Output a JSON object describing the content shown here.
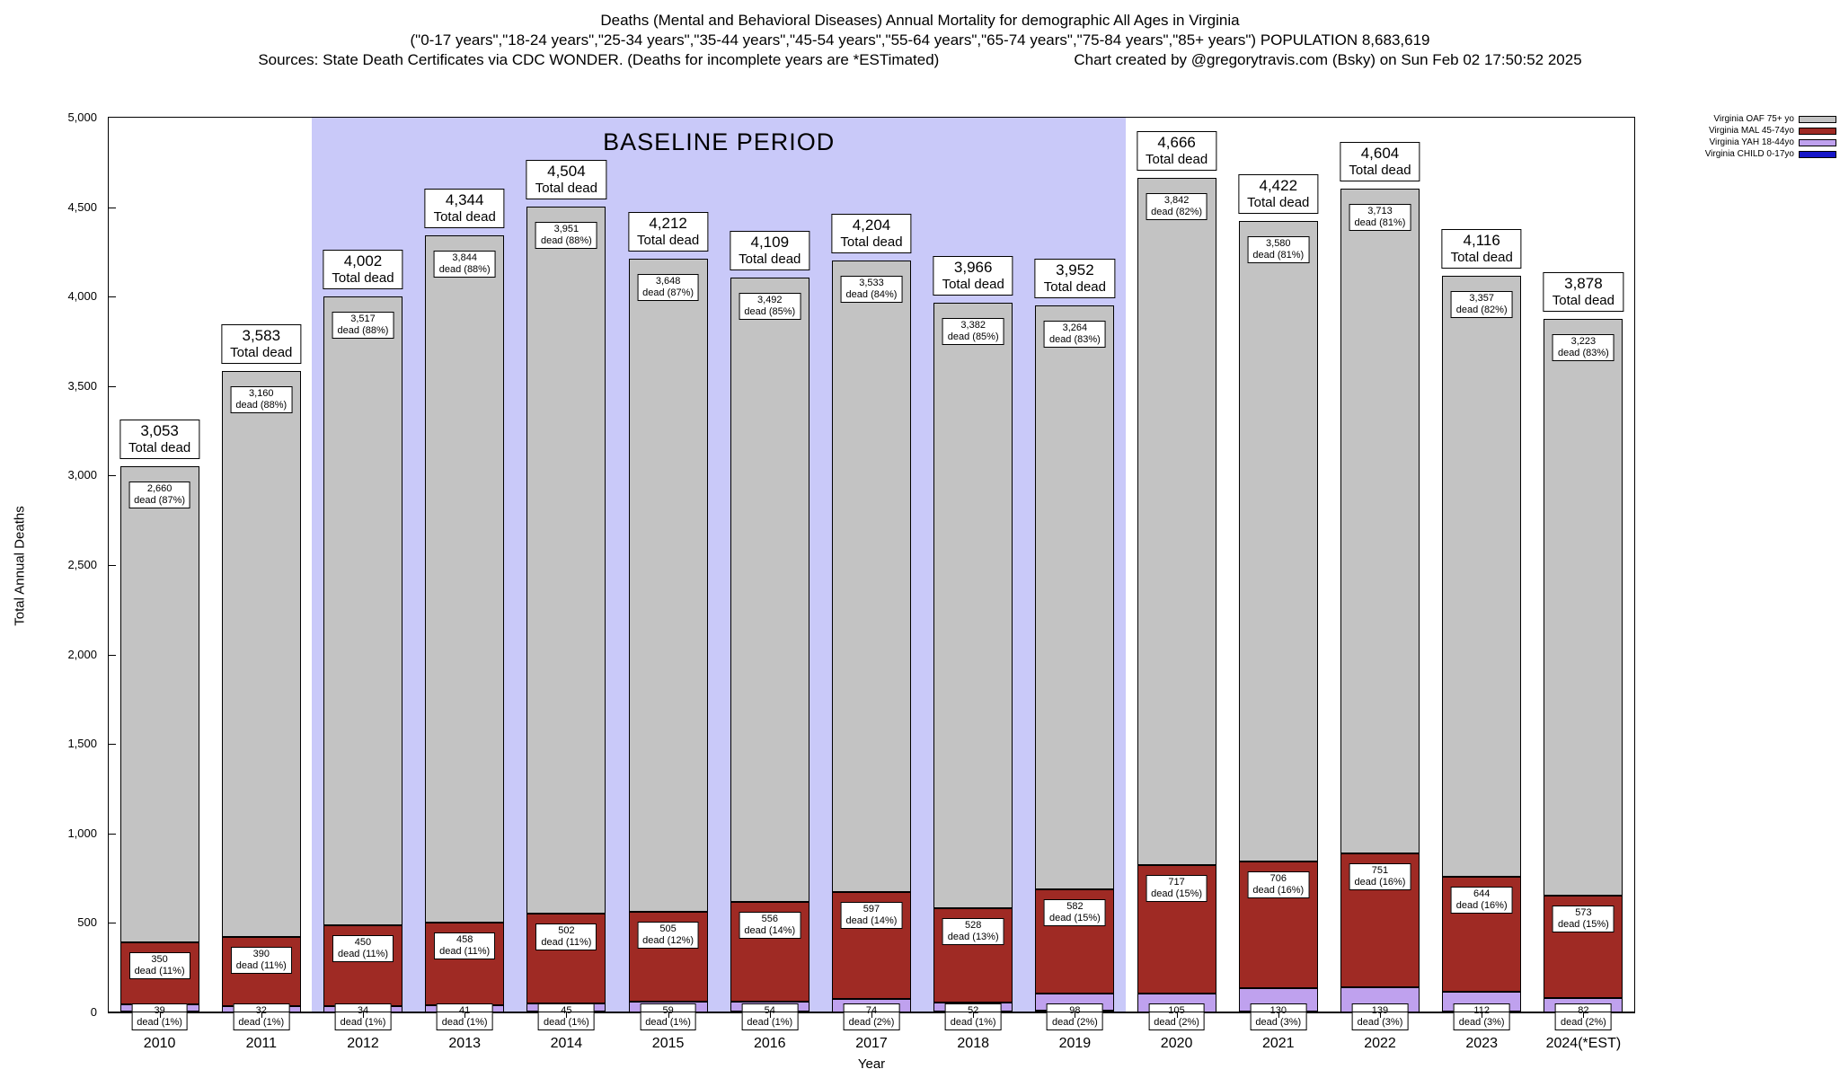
{
  "header": {
    "line1": "Deaths (Mental and Behavioral Diseases) Annual Mortality for demographic All Ages in Virginia",
    "line2": "(\"0-17 years\",\"18-24 years\",\"25-34 years\",\"35-44 years\",\"45-54 years\",\"55-64 years\",\"65-74 years\",\"75-84 years\",\"85+ years\") POPULATION 8,683,619",
    "sources": "Sources: State Death Certificates via CDC WONDER. (Deaths for incomplete years are *ESTimated)",
    "credit": "Chart created by @gregorytravis.com (Bsky) on Sun Feb 02 17:50:52 2025"
  },
  "chart_data": {
    "type": "bar",
    "stacked": true,
    "xlabel": "Year",
    "ylabel": "Total Annual Deaths",
    "ylim": [
      0,
      5000
    ],
    "yticks": [
      0,
      500,
      1000,
      1500,
      2000,
      2500,
      3000,
      3500,
      4000,
      4500,
      5000
    ],
    "total_dead_text": "Total dead",
    "baseline_period": {
      "label": "BASELINE PERIOD",
      "from": "2012",
      "to": "2019"
    },
    "colors": {
      "oaf": "#c3c3c3",
      "mal": "#9f2a24",
      "yah": "#bfa1ee",
      "child": "#1616c8",
      "baseline": "#c9c9f9"
    },
    "legend": [
      {
        "label": "Virginia OAF 75+ yo",
        "key": "oaf"
      },
      {
        "label": "Virginia MAL 45-74yo",
        "key": "mal"
      },
      {
        "label": "Virginia YAH 18-44yo",
        "key": "yah"
      },
      {
        "label": "Virginia CHILD 0-17yo",
        "key": "child"
      }
    ],
    "categories": [
      "2010",
      "2011",
      "2012",
      "2013",
      "2014",
      "2015",
      "2016",
      "2017",
      "2018",
      "2019",
      "2020",
      "2021",
      "2022",
      "2023",
      "2024(*EST)"
    ],
    "bars": [
      {
        "year": "2010",
        "total": 3053,
        "total_label": "3,053",
        "oaf": {
          "v": 2660,
          "label": "2,660",
          "sub": "dead (87%)"
        },
        "mal": {
          "v": 350,
          "label": "350",
          "sub": "dead (11%)"
        },
        "yah": {
          "v": 39,
          "label": "39",
          "sub": "dead (1%)"
        }
      },
      {
        "year": "2011",
        "total": 3583,
        "total_label": "3,583",
        "oaf": {
          "v": 3160,
          "label": "3,160",
          "sub": "dead (88%)"
        },
        "mal": {
          "v": 390,
          "label": "390",
          "sub": "dead (11%)"
        },
        "yah": {
          "v": 32,
          "label": "32",
          "sub": "dead (1%)"
        }
      },
      {
        "year": "2012",
        "total": 4002,
        "total_label": "4,002",
        "oaf": {
          "v": 3517,
          "label": "3,517",
          "sub": "dead (88%)"
        },
        "mal": {
          "v": 450,
          "label": "450",
          "sub": "dead (11%)"
        },
        "yah": {
          "v": 34,
          "label": "34",
          "sub": "dead (1%)"
        }
      },
      {
        "year": "2013",
        "total": 4344,
        "total_label": "4,344",
        "oaf": {
          "v": 3844,
          "label": "3,844",
          "sub": "dead (88%)"
        },
        "mal": {
          "v": 458,
          "label": "458",
          "sub": "dead (11%)"
        },
        "yah": {
          "v": 41,
          "label": "41",
          "sub": "dead (1%)"
        }
      },
      {
        "year": "2014",
        "total": 4504,
        "total_label": "4,504",
        "oaf": {
          "v": 3951,
          "label": "3,951",
          "sub": "dead (88%)"
        },
        "mal": {
          "v": 502,
          "label": "502",
          "sub": "dead (11%)"
        },
        "yah": {
          "v": 45,
          "label": "45",
          "sub": "dead (1%)"
        }
      },
      {
        "year": "2015",
        "total": 4212,
        "total_label": "4,212",
        "oaf": {
          "v": 3648,
          "label": "3,648",
          "sub": "dead (87%)"
        },
        "mal": {
          "v": 505,
          "label": "505",
          "sub": "dead (12%)"
        },
        "yah": {
          "v": 59,
          "label": "59",
          "sub": "dead (1%)"
        }
      },
      {
        "year": "2016",
        "total": 4109,
        "total_label": "4,109",
        "oaf": {
          "v": 3492,
          "label": "3,492",
          "sub": "dead (85%)"
        },
        "mal": {
          "v": 556,
          "label": "556",
          "sub": "dead (14%)"
        },
        "yah": {
          "v": 54,
          "label": "54",
          "sub": "dead (1%)"
        }
      },
      {
        "year": "2017",
        "total": 4204,
        "total_label": "4,204",
        "oaf": {
          "v": 3533,
          "label": "3,533",
          "sub": "dead (84%)"
        },
        "mal": {
          "v": 597,
          "label": "597",
          "sub": "dead (14%)"
        },
        "yah": {
          "v": 74,
          "label": "74",
          "sub": "dead (2%)"
        }
      },
      {
        "year": "2018",
        "total": 3966,
        "total_label": "3,966",
        "oaf": {
          "v": 3382,
          "label": "3,382",
          "sub": "dead (85%)"
        },
        "mal": {
          "v": 528,
          "label": "528",
          "sub": "dead (13%)"
        },
        "yah": {
          "v": 52,
          "label": "52",
          "sub": "dead (1%)"
        }
      },
      {
        "year": "2019",
        "total": 3952,
        "total_label": "3,952",
        "oaf": {
          "v": 3264,
          "label": "3,264",
          "sub": "dead (83%)"
        },
        "mal": {
          "v": 582,
          "label": "582",
          "sub": "dead (15%)"
        },
        "yah": {
          "v": 98,
          "label": "98",
          "sub": "dead (2%)"
        }
      },
      {
        "year": "2020",
        "total": 4666,
        "total_label": "4,666",
        "oaf": {
          "v": 3842,
          "label": "3,842",
          "sub": "dead (82%)"
        },
        "mal": {
          "v": 717,
          "label": "717",
          "sub": "dead (15%)"
        },
        "yah": {
          "v": 105,
          "label": "105",
          "sub": "dead (2%)"
        }
      },
      {
        "year": "2021",
        "total": 4422,
        "total_label": "4,422",
        "oaf": {
          "v": 3580,
          "label": "3,580",
          "sub": "dead (81%)"
        },
        "mal": {
          "v": 706,
          "label": "706",
          "sub": "dead (16%)"
        },
        "yah": {
          "v": 130,
          "label": "130",
          "sub": "dead (3%)"
        }
      },
      {
        "year": "2022",
        "total": 4604,
        "total_label": "4,604",
        "oaf": {
          "v": 3713,
          "label": "3,713",
          "sub": "dead (81%)"
        },
        "mal": {
          "v": 751,
          "label": "751",
          "sub": "dead (16%)"
        },
        "yah": {
          "v": 139,
          "label": "139",
          "sub": "dead (3%)"
        }
      },
      {
        "year": "2023",
        "total": 4116,
        "total_label": "4,116",
        "oaf": {
          "v": 3357,
          "label": "3,357",
          "sub": "dead (82%)"
        },
        "mal": {
          "v": 644,
          "label": "644",
          "sub": "dead (16%)"
        },
        "yah": {
          "v": 112,
          "label": "112",
          "sub": "dead (3%)"
        }
      },
      {
        "year": "2024(*EST)",
        "total": 3878,
        "total_label": "3,878",
        "oaf": {
          "v": 3223,
          "label": "3,223",
          "sub": "dead (83%)"
        },
        "mal": {
          "v": 573,
          "label": "573",
          "sub": "dead (15%)"
        },
        "yah": {
          "v": 82,
          "label": "82",
          "sub": "dead (2%)"
        }
      }
    ]
  }
}
